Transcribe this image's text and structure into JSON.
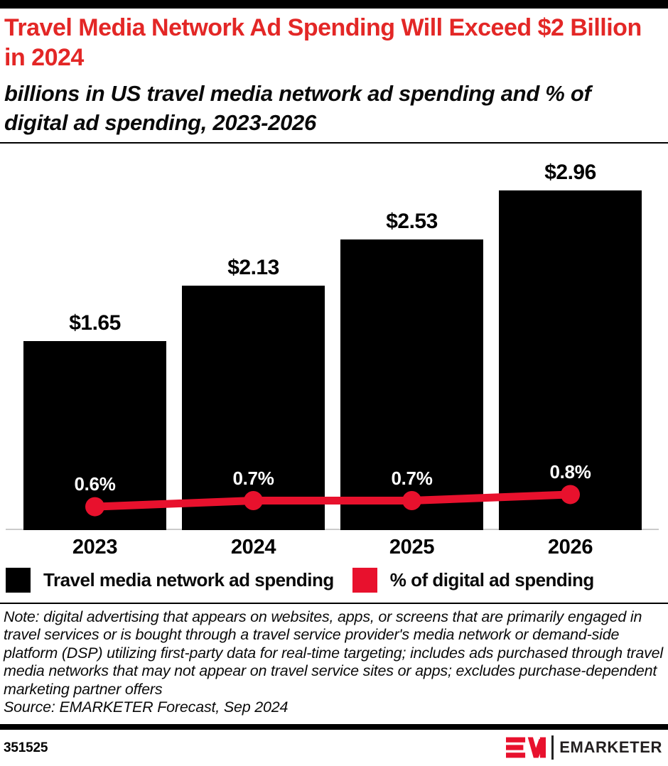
{
  "colors": {
    "title_red": "#e32726",
    "accent_red": "#e8112d",
    "bar_black": "#000000",
    "baseline_gray": "#cbcbcb"
  },
  "header": {
    "title": "Travel Media Network Ad Spending Will Exceed $2 Billion in 2024",
    "subtitle": "billions in US travel media network ad spending and % of digital ad spending, 2023-2026"
  },
  "chart_data": {
    "type": "bar",
    "subtype": "bar-with-line-overlay",
    "title": "Travel Media Network Ad Spending Will Exceed $2 Billion in 2024",
    "subtitle": "billions in US travel media network ad spending and % of digital ad spending, 2023-2026",
    "categories": [
      "2023",
      "2024",
      "2025",
      "2026"
    ],
    "series": [
      {
        "name": "Travel media network ad spending",
        "type": "bar",
        "unit": "billions of US dollars",
        "values": [
          1.65,
          2.13,
          2.53,
          2.96
        ],
        "labels": [
          "$1.65",
          "$2.13",
          "$2.53",
          "$2.96"
        ],
        "color": "#000000"
      },
      {
        "name": "% of digital ad spending",
        "type": "line",
        "unit": "percent",
        "values": [
          0.6,
          0.7,
          0.7,
          0.8
        ],
        "labels": [
          "0.6%",
          "0.7%",
          "0.7%",
          "0.8%"
        ],
        "color": "#e8112d"
      }
    ],
    "xlabel": "",
    "ylabel": "",
    "ylim_bar": [
      0,
      3.2
    ],
    "grid": false,
    "legend_position": "bottom"
  },
  "legend": {
    "items": [
      {
        "label": "Travel media network ad spending",
        "color": "#000000"
      },
      {
        "label": "% of digital ad spending",
        "color": "#e8112d"
      }
    ]
  },
  "footnote": {
    "note": "Note: digital advertising that appears on websites, apps, or screens that are primarily engaged in travel services or is bought through a travel service provider's media network or demand-side platform (DSP) utilizing first-party data for real-time targeting; includes ads purchased through travel media networks that may not appear on travel service sites or apps; excludes purchase-dependent marketing partner offers",
    "source": "Source: EMARKETER Forecast, Sep 2024"
  },
  "footer": {
    "chart_id": "351525",
    "brand_name": "EMARKETER",
    "brand_mark": "em-monogram-icon"
  }
}
